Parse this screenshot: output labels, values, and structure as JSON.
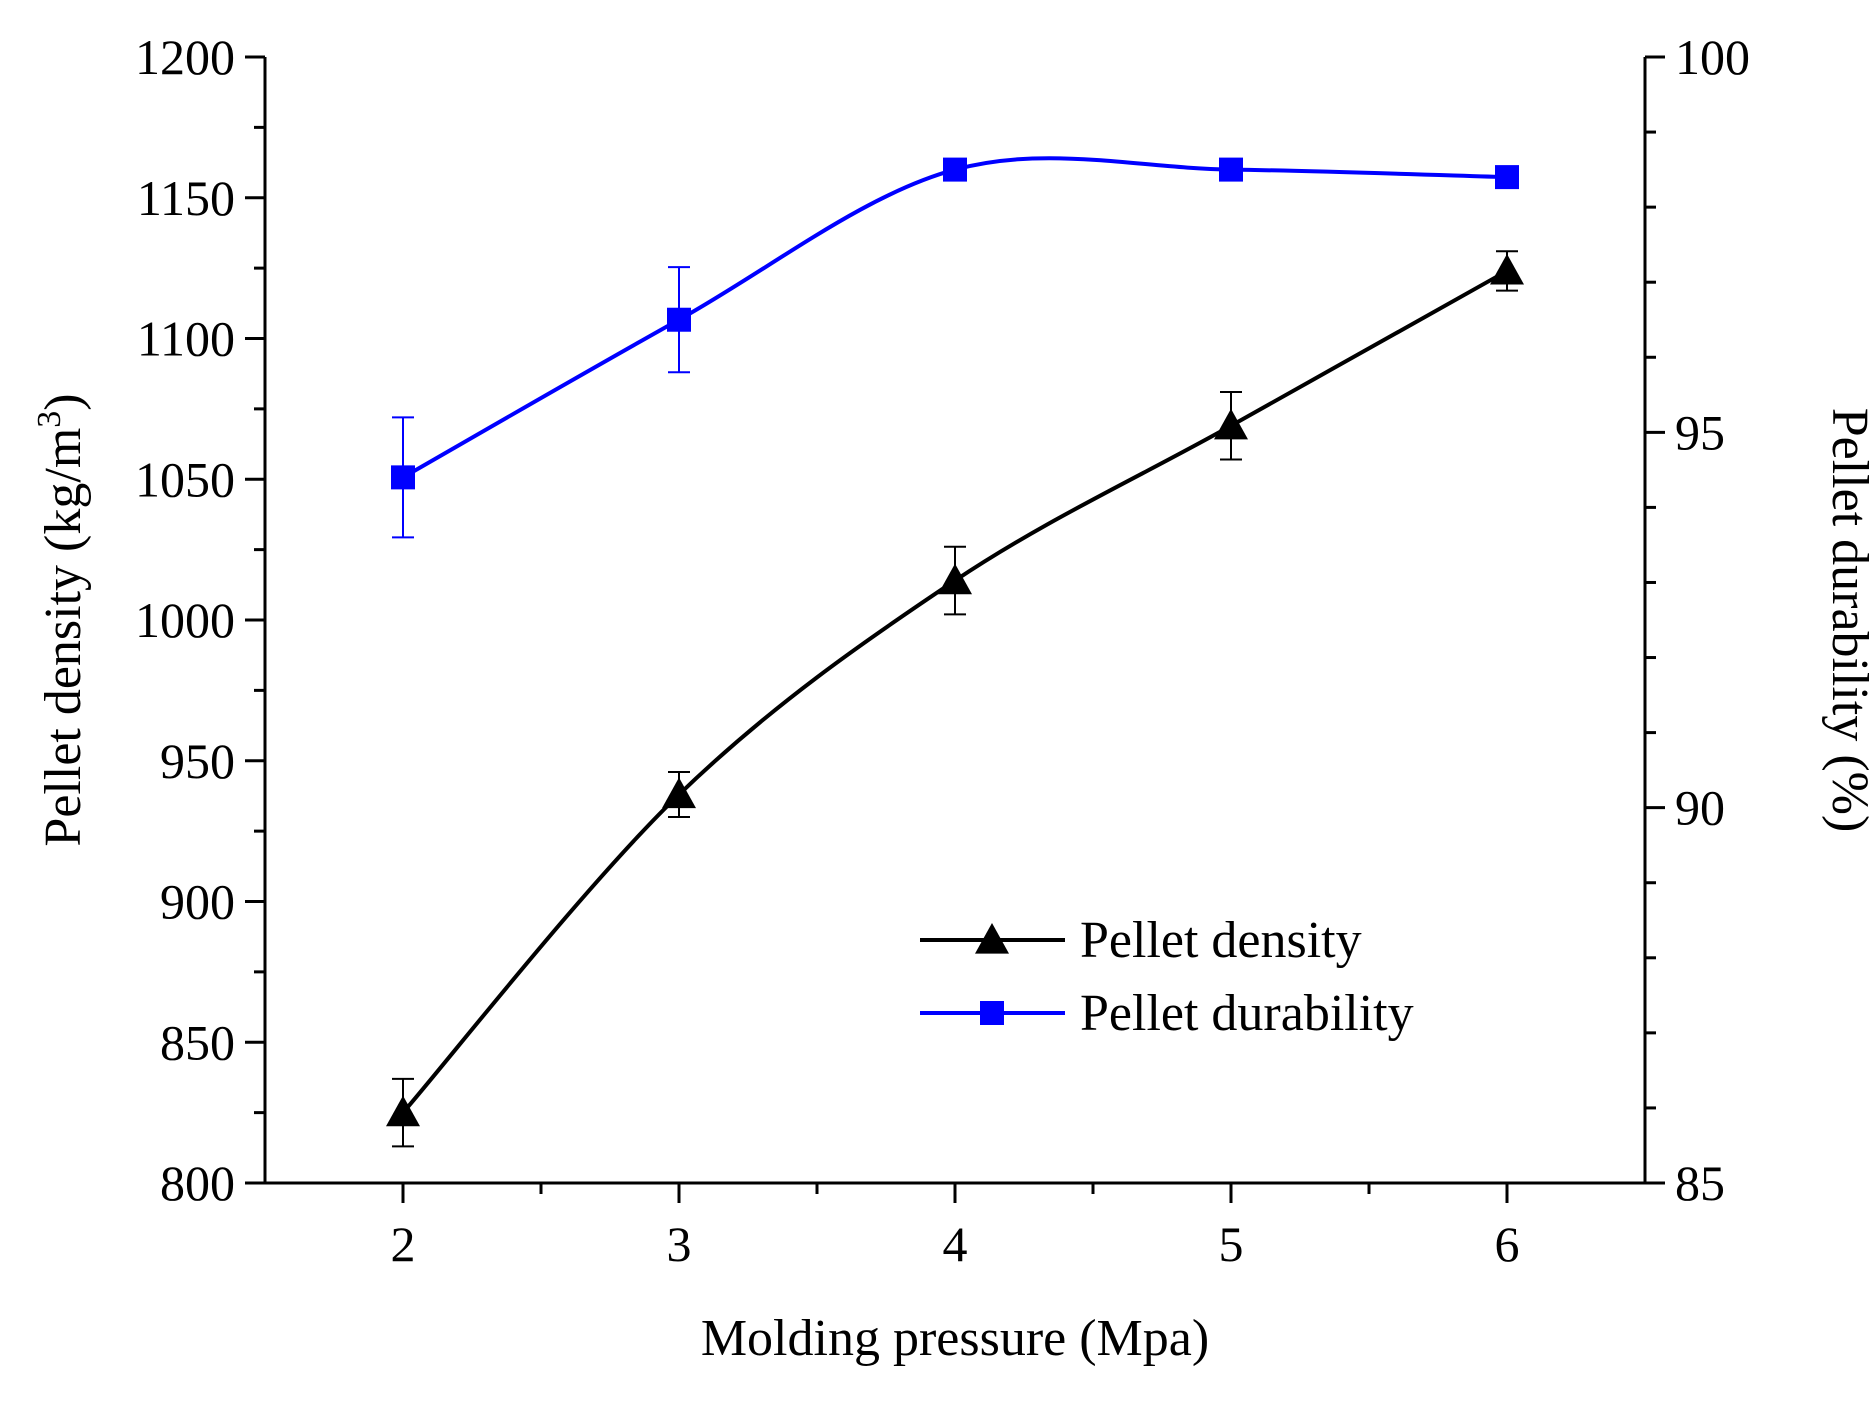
{
  "chart_data": {
    "type": "line",
    "title": "",
    "xlabel": "Molding pressure (Mpa)",
    "ylabel": "Pellet density (kg/m",
    "ylabel_superscript": "3",
    "ylabel_close": ")",
    "y2label": "Pellet durability (%)",
    "xlim": [
      1.5,
      6.5
    ],
    "ylim": [
      800,
      1200
    ],
    "y2lim": [
      85,
      100
    ],
    "x_ticks": [
      2,
      3,
      4,
      5,
      6
    ],
    "x_tick_labels": [
      "2",
      "3",
      "4",
      "5",
      "6"
    ],
    "y_ticks": [
      800,
      850,
      900,
      950,
      1000,
      1050,
      1100,
      1150,
      1200
    ],
    "y_tick_labels": [
      "800",
      "850",
      "900",
      "950",
      "1000",
      "1050",
      "1100",
      "1150",
      "1200"
    ],
    "y2_ticks": [
      85,
      90,
      95,
      100
    ],
    "y2_tick_labels": [
      "85",
      "90",
      "95",
      "100"
    ],
    "legend_position": "lower-right",
    "series": [
      {
        "name": "Pellet density",
        "axis": "left",
        "color": "#000000",
        "marker": "triangle",
        "x": [
          2,
          3,
          4,
          5,
          6
        ],
        "values": [
          825,
          938,
          1014,
          1069,
          1124
        ],
        "error": [
          12,
          8,
          12,
          12,
          7
        ]
      },
      {
        "name": "Pellet durability",
        "axis": "right",
        "color": "#0000ff",
        "marker": "square",
        "x": [
          2,
          3,
          4,
          5,
          6
        ],
        "values": [
          94.4,
          96.5,
          98.5,
          98.5,
          98.4
        ],
        "error": [
          0.8,
          0.7,
          0,
          0,
          0
        ]
      }
    ]
  }
}
